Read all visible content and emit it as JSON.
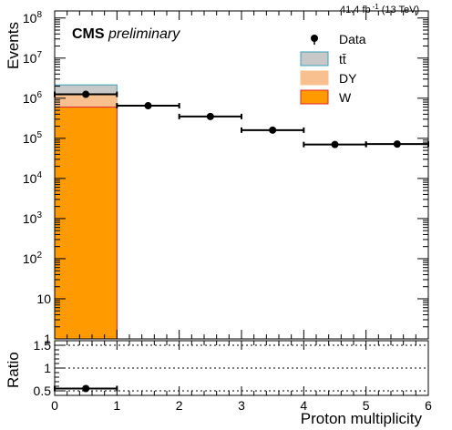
{
  "header": {
    "lumi": "41.4 fb",
    "lumi_exp": "-1",
    "energy": "(13 TeV)",
    "cms": "CMS",
    "status": "preliminary"
  },
  "colors": {
    "ttbar_fill": "#c8c8c8",
    "ttbar_line": "#3aa0b4",
    "dy_fill": "#f7c08e",
    "w_fill": "#ff9a00",
    "w_line": "#e0242e",
    "data": "#000000"
  },
  "chart_data": [
    {
      "type": "bar",
      "stacked": true,
      "log_y": true,
      "xlabel": "Proton multiplicity",
      "ylabel": "Events",
      "xlim": [
        0,
        6
      ],
      "ylim": [
        1,
        150000000
      ],
      "x_ticks": [
        "0",
        "1",
        "2",
        "3",
        "4",
        "5",
        "6"
      ],
      "y_ticks": [
        "1",
        "10",
        "10",
        "10",
        "10",
        "10",
        "10",
        "10",
        "10"
      ],
      "y_tick_exps": [
        "",
        "",
        "2",
        "3",
        "4",
        "5",
        "6",
        "7",
        "8"
      ],
      "bin_edges": [
        0,
        1,
        2,
        3,
        4,
        5,
        6
      ],
      "legend_position": "top-right",
      "legend": [
        {
          "label": "Data",
          "style": "marker"
        },
        {
          "label": "tt̄",
          "style": "box",
          "fill": "#c8c8c8",
          "line": "#3aa0b4"
        },
        {
          "label": "DY",
          "style": "box",
          "fill": "#f7c08e",
          "line": "#f7c08e"
        },
        {
          "label": "W",
          "style": "box",
          "fill": "#ff9a00",
          "line": "#e0242e"
        }
      ],
      "series": [
        {
          "name": "W",
          "values": [
            600000,
            0,
            0,
            0,
            0,
            0
          ]
        },
        {
          "name": "DY",
          "values": [
            650000,
            0,
            0,
            0,
            0,
            0
          ]
        },
        {
          "name": "tt̄",
          "values": [
            900000,
            0,
            0,
            0,
            0,
            0
          ]
        },
        {
          "name": "Data",
          "x": [
            0.5,
            1.5,
            2.5,
            3.5,
            4.5,
            5.5
          ],
          "values": [
            1250000,
            650000,
            350000,
            160000,
            70000,
            72000
          ]
        }
      ]
    },
    {
      "type": "scatter",
      "xlabel": "Proton multiplicity",
      "ylabel": "Ratio",
      "xlim": [
        0,
        6
      ],
      "ylim": [
        0.4,
        1.6
      ],
      "y_ticks": [
        "0.5",
        "1",
        "1.5"
      ],
      "reference_lines": [
        0.5,
        1.0,
        1.5
      ],
      "x": [
        0.5
      ],
      "values": [
        0.55
      ],
      "x_err": [
        0.5
      ]
    }
  ]
}
